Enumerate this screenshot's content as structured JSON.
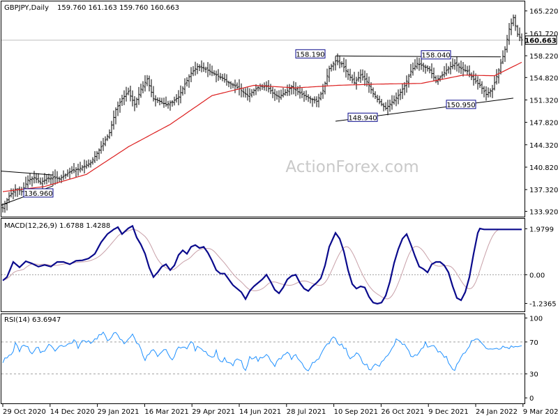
{
  "header": {
    "symbol_label": "GBPJPY,Daily",
    "ohlc_text": "159.760 161.163 159.760 160.663",
    "macd_label": "MACD(12,26,9) 1.6788 1.4288",
    "rsi_label": "RSI(14) 63.6947"
  },
  "watermark": "ActionForex.com",
  "colors": {
    "candle": "#000000",
    "ma": "#dc1e1e",
    "macd_line": "#0a0a8c",
    "macd_signal": "#c8a0a8",
    "rsi_line": "#1e90ff",
    "trendline": "#000000",
    "annotation_box": "#0a0a8c"
  },
  "chart_data": [
    {
      "type": "line",
      "name": "price",
      "x_ticks": [
        "29 Oct 2020",
        "14 Dec 2020",
        "29 Jan 2021",
        "16 Mar 2021",
        "29 Apr 2021",
        "14 Jun 2021",
        "28 Jul 2021",
        "10 Sep 2021",
        "26 Oct 2021",
        "9 Dec 2021",
        "24 Jan 2022",
        "9 Mar 2022"
      ],
      "y_ticks": [
        "165.220",
        "161.720",
        "158.220",
        "154.820",
        "151.320",
        "147.820",
        "144.320",
        "140.820",
        "137.320",
        "133.920"
      ],
      "y_tick_values": [
        165.22,
        161.72,
        158.22,
        154.82,
        151.32,
        147.82,
        144.32,
        140.82,
        137.32,
        133.92
      ],
      "ylim": [
        133.2,
        166.6
      ],
      "current_price_label": "160.663",
      "current_price": 160.663,
      "annotations": [
        {
          "label": "136.960",
          "value": 136.96
        },
        {
          "label": "158.190",
          "value": 158.19
        },
        {
          "label": "158.040",
          "value": 158.04
        },
        {
          "label": "148.940",
          "value": 148.94
        },
        {
          "label": "150.950",
          "value": 150.95
        }
      ],
      "close_anchors": [
        [
          0,
          134.5
        ],
        [
          3,
          136.3
        ],
        [
          6,
          137.4
        ],
        [
          9,
          137.0
        ],
        [
          12,
          138.8
        ],
        [
          15,
          139.2
        ],
        [
          18,
          138.4
        ],
        [
          21,
          139.0
        ],
        [
          24,
          139.2
        ],
        [
          27,
          139.0
        ],
        [
          30,
          139.6
        ],
        [
          33,
          140.3
        ],
        [
          36,
          140.5
        ],
        [
          39,
          141.0
        ],
        [
          42,
          141.5
        ],
        [
          45,
          143.0
        ],
        [
          48,
          144.5
        ],
        [
          51,
          146.2
        ],
        [
          54,
          149.8
        ],
        [
          57,
          151.5
        ],
        [
          60,
          152.6
        ],
        [
          63,
          150.6
        ],
        [
          66,
          153.0
        ],
        [
          69,
          154.6
        ],
        [
          72,
          151.5
        ],
        [
          75,
          151.1
        ],
        [
          78,
          150.6
        ],
        [
          81,
          151.0
        ],
        [
          84,
          151.8
        ],
        [
          87,
          153.8
        ],
        [
          90,
          155.5
        ],
        [
          93,
          156.5
        ],
        [
          96,
          156.3
        ],
        [
          99,
          155.8
        ],
        [
          102,
          155.2
        ],
        [
          105,
          154.7
        ],
        [
          108,
          154.0
        ],
        [
          111,
          153.5
        ],
        [
          114,
          152.8
        ],
        [
          117,
          152.0
        ],
        [
          120,
          152.8
        ],
        [
          123,
          153.5
        ],
        [
          126,
          153.4
        ],
        [
          129,
          152.4
        ],
        [
          132,
          151.8
        ],
        [
          135,
          152.5
        ],
        [
          138,
          153.4
        ],
        [
          141,
          152.6
        ],
        [
          144,
          152.0
        ],
        [
          147,
          151.5
        ],
        [
          150,
          151.1
        ],
        [
          153,
          152.8
        ],
        [
          156,
          156.2
        ],
        [
          159,
          157.4
        ],
        [
          162,
          157.0
        ],
        [
          165,
          155.3
        ],
        [
          168,
          154.0
        ],
        [
          171,
          155.2
        ],
        [
          174,
          154.2
        ],
        [
          177,
          152.3
        ],
        [
          180,
          151.0
        ],
        [
          183,
          150.0
        ],
        [
          186,
          151.0
        ],
        [
          189,
          152.0
        ],
        [
          192,
          153.5
        ],
        [
          195,
          155.8
        ],
        [
          198,
          157.0
        ],
        [
          201,
          156.6
        ],
        [
          204,
          156.0
        ],
        [
          207,
          154.3
        ],
        [
          210,
          155.2
        ],
        [
          213,
          156.3
        ],
        [
          216,
          157.0
        ],
        [
          219,
          156.2
        ],
        [
          222,
          155.8
        ],
        [
          225,
          154.5
        ],
        [
          228,
          153.6
        ],
        [
          231,
          152.2
        ],
        [
          234,
          153.0
        ],
        [
          237,
          156.0
        ],
        [
          240,
          159.2
        ],
        [
          242,
          162.4
        ],
        [
          244,
          164.2
        ],
        [
          246,
          161.6
        ],
        [
          248,
          160.7
        ]
      ],
      "ma_anchors": [
        [
          0,
          137.0
        ],
        [
          20,
          137.8
        ],
        [
          40,
          139.7
        ],
        [
          60,
          144.0
        ],
        [
          80,
          147.5
        ],
        [
          100,
          152.0
        ],
        [
          120,
          153.6
        ],
        [
          140,
          153.2
        ],
        [
          160,
          153.6
        ],
        [
          180,
          153.8
        ],
        [
          200,
          153.9
        ],
        [
          220,
          155.2
        ],
        [
          235,
          155.1
        ],
        [
          248,
          157.2
        ]
      ],
      "trendlines": [
        [
          [
            159,
            158.19
          ],
          [
            238,
            158.04
          ]
        ],
        [
          [
            159,
            148.0
          ],
          [
            244,
            151.6
          ]
        ]
      ]
    },
    {
      "type": "line",
      "name": "MACD(12,26,9)",
      "y_ticks": [
        "1.9799",
        "0.00",
        "-1.2365"
      ],
      "y_tick_values": [
        1.9799,
        0.0,
        -1.2365
      ],
      "ylim": [
        -1.55,
        2.35
      ],
      "macd_anchors": [
        [
          0,
          -0.25
        ],
        [
          2,
          -0.1
        ],
        [
          5,
          0.55
        ],
        [
          8,
          0.32
        ],
        [
          11,
          0.58
        ],
        [
          14,
          0.48
        ],
        [
          17,
          0.35
        ],
        [
          20,
          0.42
        ],
        [
          23,
          0.35
        ],
        [
          26,
          0.55
        ],
        [
          29,
          0.55
        ],
        [
          32,
          0.45
        ],
        [
          35,
          0.6
        ],
        [
          38,
          0.62
        ],
        [
          41,
          0.7
        ],
        [
          44,
          0.9
        ],
        [
          47,
          1.4
        ],
        [
          50,
          1.75
        ],
        [
          53,
          1.95
        ],
        [
          55,
          2.05
        ],
        [
          57,
          1.75
        ],
        [
          60,
          2.0
        ],
        [
          62,
          2.1
        ],
        [
          64,
          1.6
        ],
        [
          66,
          1.3
        ],
        [
          68,
          0.9
        ],
        [
          70,
          0.3
        ],
        [
          72,
          -0.1
        ],
        [
          74,
          0.1
        ],
        [
          76,
          0.35
        ],
        [
          78,
          0.45
        ],
        [
          80,
          0.2
        ],
        [
          82,
          0.4
        ],
        [
          84,
          0.85
        ],
        [
          86,
          1.05
        ],
        [
          88,
          0.9
        ],
        [
          90,
          1.2
        ],
        [
          92,
          1.28
        ],
        [
          94,
          1.15
        ],
        [
          96,
          1.2
        ],
        [
          98,
          0.95
        ],
        [
          100,
          0.6
        ],
        [
          102,
          0.2
        ],
        [
          104,
          0.05
        ],
        [
          106,
          0.05
        ],
        [
          108,
          -0.2
        ],
        [
          110,
          -0.45
        ],
        [
          112,
          -0.6
        ],
        [
          114,
          -0.75
        ],
        [
          116,
          -1.05
        ],
        [
          118,
          -0.7
        ],
        [
          120,
          -0.5
        ],
        [
          122,
          -0.35
        ],
        [
          124,
          -0.2
        ],
        [
          126,
          0.0
        ],
        [
          128,
          -0.3
        ],
        [
          130,
          -0.65
        ],
        [
          132,
          -0.8
        ],
        [
          134,
          -0.55
        ],
        [
          136,
          -0.2
        ],
        [
          138,
          -0.05
        ],
        [
          140,
          0.0
        ],
        [
          142,
          -0.35
        ],
        [
          144,
          -0.6
        ],
        [
          146,
          -0.7
        ],
        [
          148,
          -0.5
        ],
        [
          150,
          -0.35
        ],
        [
          152,
          -0.15
        ],
        [
          154,
          0.4
        ],
        [
          156,
          1.2
        ],
        [
          158,
          1.6
        ],
        [
          159,
          1.8
        ],
        [
          161,
          1.55
        ],
        [
          163,
          1.0
        ],
        [
          165,
          0.2
        ],
        [
          167,
          -0.4
        ],
        [
          169,
          -0.6
        ],
        [
          171,
          -0.5
        ],
        [
          173,
          -0.55
        ],
        [
          175,
          -0.95
        ],
        [
          177,
          -1.2
        ],
        [
          179,
          -1.25
        ],
        [
          181,
          -1.2
        ],
        [
          183,
          -0.9
        ],
        [
          185,
          -0.3
        ],
        [
          187,
          0.5
        ],
        [
          189,
          1.1
        ],
        [
          191,
          1.55
        ],
        [
          193,
          1.75
        ],
        [
          195,
          1.3
        ],
        [
          197,
          0.8
        ],
        [
          199,
          0.35
        ],
        [
          201,
          0.25
        ],
        [
          203,
          0.1
        ],
        [
          205,
          0.45
        ],
        [
          207,
          0.55
        ],
        [
          209,
          0.55
        ],
        [
          211,
          0.4
        ],
        [
          213,
          0.1
        ],
        [
          215,
          -0.5
        ],
        [
          217,
          -1.0
        ],
        [
          219,
          -1.1
        ],
        [
          221,
          -0.75
        ],
        [
          223,
          -0.1
        ],
        [
          225,
          0.9
        ],
        [
          227,
          1.8
        ],
        [
          228,
          1.99
        ],
        [
          230,
          1.95
        ]
      ],
      "signal_shift": 5
    },
    {
      "type": "line",
      "name": "RSI(14)",
      "y_ticks": [
        "100",
        "70",
        "30",
        "0"
      ],
      "y_tick_values": [
        100,
        70,
        30,
        0
      ],
      "ylim": [
        -6,
        103
      ],
      "levels": [
        70,
        30
      ],
      "rsi_anchors": [
        [
          0,
          45
        ],
        [
          2,
          50
        ],
        [
          4,
          52
        ],
        [
          6,
          68
        ],
        [
          8,
          60
        ],
        [
          10,
          65
        ],
        [
          12,
          62
        ],
        [
          14,
          55
        ],
        [
          16,
          65
        ],
        [
          18,
          58
        ],
        [
          20,
          60
        ],
        [
          22,
          67
        ],
        [
          24,
          60
        ],
        [
          26,
          62
        ],
        [
          28,
          67
        ],
        [
          30,
          65
        ],
        [
          32,
          68
        ],
        [
          34,
          72
        ],
        [
          36,
          64
        ],
        [
          38,
          70
        ],
        [
          40,
          72
        ],
        [
          42,
          70
        ],
        [
          44,
          73
        ],
        [
          46,
          78
        ],
        [
          48,
          80
        ],
        [
          50,
          72
        ],
        [
          52,
          78
        ],
        [
          54,
          80
        ],
        [
          56,
          74
        ],
        [
          58,
          68
        ],
        [
          60,
          75
        ],
        [
          62,
          78
        ],
        [
          64,
          70
        ],
        [
          66,
          62
        ],
        [
          68,
          48
        ],
        [
          70,
          55
        ],
        [
          72,
          60
        ],
        [
          74,
          50
        ],
        [
          76,
          56
        ],
        [
          78,
          62
        ],
        [
          80,
          48
        ],
        [
          82,
          52
        ],
        [
          84,
          63
        ],
        [
          86,
          66
        ],
        [
          88,
          60
        ],
        [
          90,
          72
        ],
        [
          92,
          60
        ],
        [
          94,
          65
        ],
        [
          96,
          60
        ],
        [
          98,
          56
        ],
        [
          100,
          50
        ],
        [
          102,
          58
        ],
        [
          104,
          45
        ],
        [
          106,
          48
        ],
        [
          108,
          43
        ],
        [
          110,
          40
        ],
        [
          112,
          50
        ],
        [
          114,
          44
        ],
        [
          116,
          32
        ],
        [
          118,
          50
        ],
        [
          120,
          52
        ],
        [
          122,
          47
        ],
        [
          124,
          52
        ],
        [
          126,
          56
        ],
        [
          128,
          45
        ],
        [
          130,
          40
        ],
        [
          132,
          48
        ],
        [
          134,
          52
        ],
        [
          136,
          55
        ],
        [
          138,
          50
        ],
        [
          140,
          53
        ],
        [
          142,
          48
        ],
        [
          144,
          38
        ],
        [
          146,
          32
        ],
        [
          148,
          45
        ],
        [
          150,
          48
        ],
        [
          152,
          54
        ],
        [
          154,
          62
        ],
        [
          156,
          70
        ],
        [
          158,
          78
        ],
        [
          160,
          70
        ],
        [
          162,
          66
        ],
        [
          164,
          60
        ],
        [
          166,
          50
        ],
        [
          168,
          55
        ],
        [
          170,
          56
        ],
        [
          172,
          42
        ],
        [
          174,
          40
        ],
        [
          176,
          35
        ],
        [
          178,
          40
        ],
        [
          180,
          42
        ],
        [
          182,
          45
        ],
        [
          184,
          55
        ],
        [
          186,
          62
        ],
        [
          188,
          72
        ],
        [
          190,
          70
        ],
        [
          192,
          66
        ],
        [
          194,
          58
        ],
        [
          196,
          50
        ],
        [
          198,
          55
        ],
        [
          200,
          60
        ],
        [
          202,
          68
        ],
        [
          204,
          62
        ],
        [
          206,
          66
        ],
        [
          208,
          58
        ],
        [
          210,
          55
        ],
        [
          212,
          50
        ],
        [
          214,
          40
        ],
        [
          216,
          36
        ],
        [
          218,
          45
        ],
        [
          220,
          55
        ],
        [
          222,
          62
        ],
        [
          224,
          70
        ],
        [
          226,
          76
        ],
        [
          228,
          73
        ],
        [
          230,
          63
        ]
      ]
    }
  ]
}
